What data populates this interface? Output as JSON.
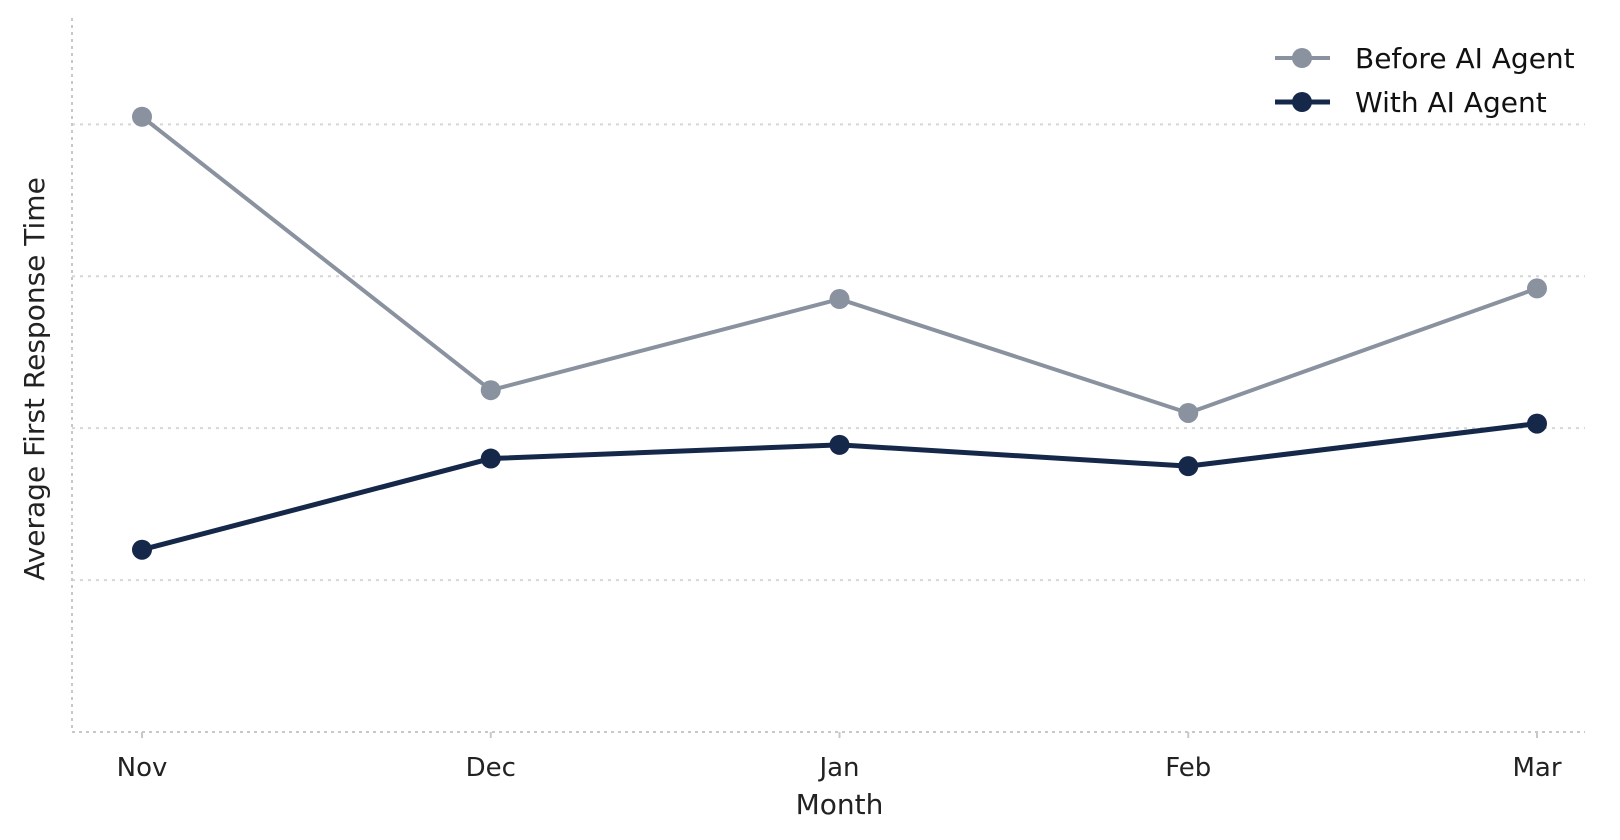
{
  "chart_data": {
    "type": "line",
    "title": "",
    "xlabel": "Month",
    "ylabel": "Average First Response Time",
    "categories": [
      "Nov",
      "Dec",
      "Jan",
      "Feb",
      "Mar"
    ],
    "ylim": [
      0,
      4.7
    ],
    "yticks_labeled": false,
    "grid": "horizontal-dotted",
    "legend_position": "top-right",
    "series": [
      {
        "name": "Before AI Agent",
        "color": "#8a929f",
        "values": [
          4.05,
          2.25,
          2.85,
          2.1,
          2.92
        ]
      },
      {
        "name": "With AI Agent",
        "color": "#16284a",
        "values": [
          1.2,
          1.8,
          1.89,
          1.75,
          2.03
        ]
      }
    ]
  }
}
